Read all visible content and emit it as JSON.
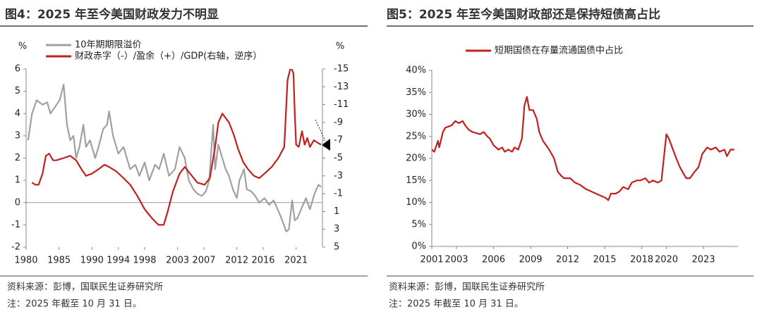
{
  "chart_data": [
    {
      "type": "line",
      "title": "图4：2025 年至今美国财政发力不明显",
      "ylabel": "%",
      "y2label": "%",
      "xlim": [
        1980,
        2025
      ],
      "xticks": [
        1980,
        1985,
        1990,
        1994,
        1998,
        2003,
        2007,
        2012,
        2016,
        2021
      ],
      "ylim": [
        -2,
        6
      ],
      "yticks": [
        -2,
        -1,
        0,
        1,
        2,
        3,
        4,
        5,
        6
      ],
      "y2lim": [
        5,
        -15
      ],
      "y2ticks": [
        -15,
        -13,
        -11,
        -9,
        -7,
        -5,
        -3,
        -1,
        1,
        3,
        5
      ],
      "series": [
        {
          "name": "10年期期限溢价",
          "color": "#a0a0a0",
          "x": [
            1980.3,
            1980.9,
            1981.6,
            1982.5,
            1983.2,
            1983.7,
            1984.4,
            1985.1,
            1985.7,
            1986.2,
            1986.7,
            1987.2,
            1987.6,
            1988.1,
            1988.7,
            1989.1,
            1989.7,
            1990.5,
            1991.0,
            1991.7,
            1992.3,
            1992.6,
            1993.2,
            1994.0,
            1994.8,
            1995.3,
            1995.8,
            1996.6,
            1997.2,
            1998.0,
            1998.7,
            1999.6,
            2000.2,
            2000.9,
            2001.7,
            2002.6,
            2003.3,
            2004.1,
            2004.7,
            2005.4,
            2006.0,
            2006.7,
            2007.3,
            2007.8,
            2008.4,
            2008.7,
            2009.2,
            2009.8,
            2010.3,
            2010.8,
            2011.4,
            2012.0,
            2012.4,
            2013.1,
            2013.5,
            2014.2,
            2014.8,
            2015.4,
            2016.2,
            2016.9,
            2017.6,
            2018.2,
            2018.9,
            2019.5,
            2019.9,
            2020.4,
            2020.8,
            2021.2,
            2021.9,
            2022.5,
            2023.1,
            2023.8,
            2024.4,
            2024.8
          ],
          "values": [
            2.8,
            4.0,
            4.6,
            4.4,
            4.5,
            4.0,
            4.3,
            4.6,
            5.3,
            3.5,
            2.8,
            3.0,
            2.0,
            2.5,
            3.5,
            2.5,
            2.8,
            2.0,
            2.5,
            3.3,
            3.5,
            4.1,
            3.0,
            2.2,
            2.5,
            2.0,
            1.5,
            1.7,
            1.2,
            1.8,
            1.0,
            1.7,
            1.5,
            2.2,
            1.2,
            1.5,
            2.5,
            2.0,
            1.0,
            0.6,
            0.4,
            0.3,
            0.5,
            1.0,
            3.5,
            1.5,
            2.6,
            2.0,
            1.5,
            1.2,
            0.6,
            0.2,
            1.0,
            1.5,
            0.6,
            0.5,
            0.3,
            0.0,
            0.2,
            -0.1,
            0.1,
            -0.3,
            -0.8,
            -1.3,
            -1.2,
            0.1,
            -0.8,
            -0.7,
            -0.2,
            0.2,
            -0.3,
            0.4,
            0.8,
            0.7
          ]
        },
        {
          "name": "财政赤字（-）/盈余（+）/GDP(右轴，逆序）",
          "color": "#c0201e",
          "axis": "y2",
          "x": [
            1980.9,
            1981.4,
            1981.9,
            1982.5,
            1983.0,
            1983.5,
            1984.1,
            1984.6,
            1985.7,
            1986.7,
            1987.6,
            1988.4,
            1989.1,
            1990.0,
            1991.0,
            1991.9,
            1992.6,
            1993.7,
            1994.8,
            1995.8,
            1996.9,
            1998.0,
            1999.1,
            2000.1,
            2000.9,
            2001.5,
            2002.3,
            2003.3,
            2004.1,
            2004.9,
            2006.0,
            2007.1,
            2007.9,
            2008.7,
            2009.2,
            2009.8,
            2010.3,
            2010.8,
            2011.6,
            2012.2,
            2013.0,
            2013.7,
            2014.6,
            2015.4,
            2016.2,
            2017.3,
            2018.3,
            2019.2,
            2019.7,
            2020.2,
            2020.6,
            2020.8,
            2021.0,
            2021.4,
            2021.9,
            2022.3,
            2022.7,
            2023.1,
            2023.7,
            2024.2,
            2024.8
          ],
          "values": [
            -2.25,
            -2.0,
            -2.0,
            -3.25,
            -5.25,
            -5.5,
            -4.75,
            -4.75,
            -5.0,
            -5.25,
            -4.75,
            -3.75,
            -3.0,
            -3.25,
            -3.75,
            -4.25,
            -4.0,
            -3.5,
            -2.75,
            -2.0,
            -0.75,
            0.75,
            1.75,
            2.5,
            2.5,
            1.0,
            -1.25,
            -3.25,
            -4.0,
            -3.25,
            -2.25,
            -2.0,
            -2.75,
            -6.25,
            -9.0,
            -10.0,
            -9.5,
            -9.0,
            -7.5,
            -6.0,
            -4.5,
            -3.75,
            -3.0,
            -2.75,
            -3.25,
            -4.0,
            -5.0,
            -6.25,
            -13.75,
            -15.25,
            -14.5,
            -10.0,
            -6.5,
            -6.25,
            -8.0,
            -6.5,
            -7.25,
            -6.25,
            -7.0,
            -6.75,
            -6.5
          ]
        }
      ],
      "source": "资料来源：彭博，国联民生证券研究所",
      "note": "注：2025 年截至 10 月 31 日。"
    },
    {
      "type": "line",
      "title": "图5：2025 年至今美国财政部还是保持短债高占比",
      "xlim": [
        2001,
        2025.8
      ],
      "xticks": [
        2001,
        2003,
        2006,
        2009,
        2012,
        2015,
        2018,
        2020,
        2023
      ],
      "ylim": [
        0,
        40
      ],
      "yticks": [
        {
          "value": 0,
          "label": "0%"
        },
        {
          "value": 5,
          "label": "5%"
        },
        {
          "value": 10,
          "label": "10%"
        },
        {
          "value": 15,
          "label": "15%"
        },
        {
          "value": 20,
          "label": "20%"
        },
        {
          "value": 25,
          "label": "25%"
        },
        {
          "value": 30,
          "label": "30%"
        },
        {
          "value": 35,
          "label": "35%"
        },
        {
          "value": 40,
          "label": "40%"
        }
      ],
      "series": [
        {
          "name": "短期国债在存量流通国债中占比",
          "color": "#c0201e",
          "x": [
            2001.0,
            2001.2,
            2001.5,
            2001.6,
            2001.9,
            2002.1,
            2002.6,
            2002.9,
            2003.2,
            2003.5,
            2003.7,
            2004.0,
            2004.3,
            2004.9,
            2005.2,
            2005.5,
            2005.7,
            2006.0,
            2006.4,
            2006.7,
            2006.9,
            2007.2,
            2007.5,
            2007.7,
            2008.0,
            2008.3,
            2008.5,
            2008.7,
            2008.9,
            2009.2,
            2009.5,
            2009.7,
            2010.0,
            2010.5,
            2010.9,
            2011.2,
            2011.5,
            2011.7,
            2012.2,
            2012.6,
            2013.0,
            2013.5,
            2013.9,
            2014.3,
            2014.7,
            2015.1,
            2015.3,
            2015.5,
            2015.9,
            2016.2,
            2016.5,
            2016.9,
            2017.2,
            2017.6,
            2017.9,
            2018.3,
            2018.6,
            2018.9,
            2019.3,
            2019.6,
            2020.0,
            2020.2,
            2020.4,
            2020.8,
            2021.1,
            2021.3,
            2021.6,
            2021.9,
            2022.3,
            2022.6,
            2022.9,
            2023.3,
            2023.6,
            2024.0,
            2024.3,
            2024.7,
            2024.9,
            2025.2,
            2025.5
          ],
          "values": [
            22,
            21.5,
            24,
            22.5,
            26,
            27,
            27.5,
            28.5,
            28,
            28.5,
            27.5,
            26.5,
            26,
            25.5,
            26,
            25,
            24.5,
            23,
            22,
            22.5,
            21.5,
            22,
            21.5,
            22.5,
            22,
            24.5,
            32,
            34,
            31,
            31,
            29,
            26,
            24,
            22,
            20,
            17,
            16,
            15.5,
            15.5,
            14.5,
            14,
            13,
            12.5,
            12,
            11.5,
            11,
            10.5,
            12,
            12,
            12.5,
            13.5,
            13,
            14.5,
            15,
            15,
            15.5,
            14.5,
            15,
            14.5,
            15,
            25.5,
            24.5,
            23,
            20,
            18,
            17,
            15.5,
            15.5,
            17,
            18,
            21,
            22.5,
            22,
            22.5,
            21.5,
            22,
            20.5,
            22,
            22
          ]
        }
      ],
      "source": "资料来源：彭博，国联民生证券研究所",
      "note": "注：2025 年截至 10 月 31 日。"
    }
  ]
}
